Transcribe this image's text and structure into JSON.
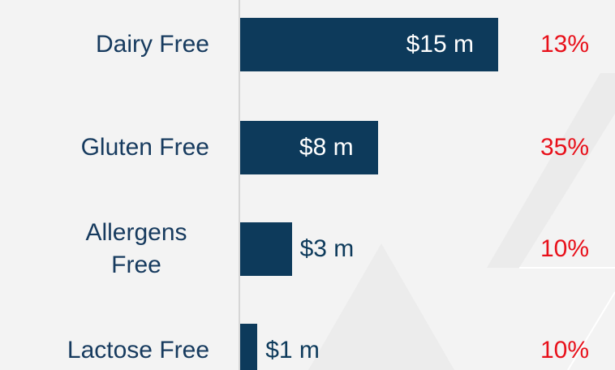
{
  "chart_data": {
    "type": "bar",
    "orientation": "horizontal",
    "categories": [
      "Dairy Free",
      "Gluten Free",
      "Allergens Free",
      "Lactose Free"
    ],
    "values": [
      15,
      8,
      3,
      1
    ],
    "value_labels": [
      "$15 m",
      "$8 m",
      "$3 m",
      "$1 m"
    ],
    "color": "#0d3a5b",
    "percent_values": [
      13,
      35,
      10,
      10
    ],
    "percent_labels": [
      "13%",
      "35%",
      "10%",
      "10%"
    ],
    "percent_color": "#e8101a"
  }
}
